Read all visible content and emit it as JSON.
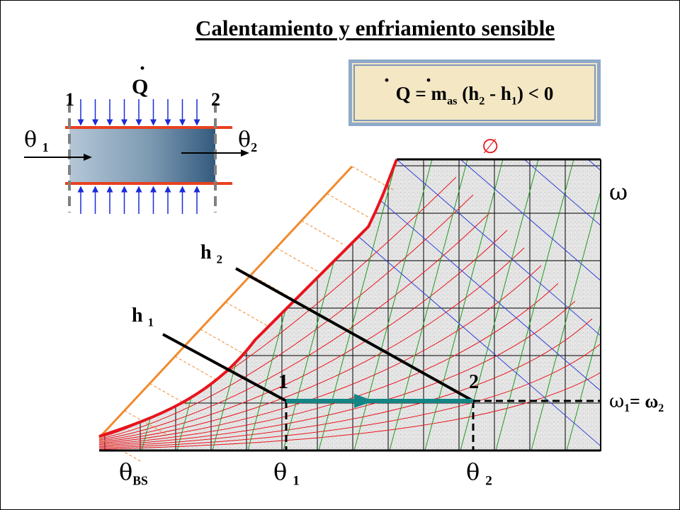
{
  "title": "Calentamiento y enfriamiento sensible",
  "formula": {
    "Q": "Q",
    "eq": " = m",
    "as": "as",
    "rest1": " (h",
    "s2": "2",
    "rest2": " - h",
    "s1": "1",
    "rest3": ") < 0"
  },
  "device": {
    "heat_label": "Q",
    "section_1": "1",
    "section_2": "2",
    "theta_in": "θ",
    "theta_in_sub": "1",
    "theta_out": "θ",
    "theta_out_sub": "2"
  },
  "chart": {
    "phi_symbol": "∅",
    "omega_symbol": "ω",
    "h2_label": "h",
    "h2_sub": "2",
    "h1_label": "h",
    "h1_sub": "1",
    "point_1": "1",
    "point_2": "2",
    "omega_eq_a": "ω",
    "omega_eq_a_sub": "1",
    "omega_eq_mid": "= ω",
    "omega_eq_b_sub": "2",
    "theta_bs": "θ",
    "theta_bs_sub": "BS",
    "theta_1": "θ",
    "theta_1_sub": "1",
    "theta_2": "θ",
    "theta_2_sub": "2"
  },
  "colors": {
    "saturation_curve": "#e8141c",
    "enthalpy_scale": "#f08a2c",
    "process_arrow": "#138585",
    "rh_lines": "#e8141c",
    "wetbulb_lines": "#1c9c1c",
    "volume_lines": "#3040d8",
    "formula_bg": "#f3e7c4",
    "formula_border": "#8fa9c9"
  }
}
